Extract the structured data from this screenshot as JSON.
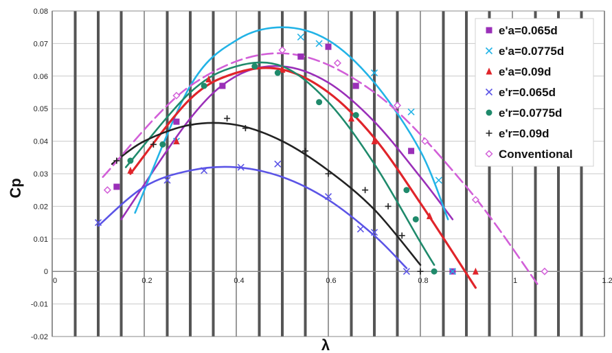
{
  "chart_data": {
    "type": "scatter",
    "xlabel": "λ",
    "ylabel": "Cp",
    "xlim": [
      0,
      1.2
    ],
    "ylim": [
      -0.02,
      0.08
    ],
    "xticks": [
      0,
      0.2,
      0.4,
      0.6,
      0.8,
      1,
      1.2
    ],
    "xtick_labels": [
      "0",
      "0.2",
      "0.4",
      "0.6",
      "0.8",
      "1",
      "1.2"
    ],
    "yticks": [
      -0.02,
      -0.01,
      0,
      0.01,
      0.02,
      0.03,
      0.04,
      0.05,
      0.06,
      0.07,
      0.08
    ],
    "ytick_labels": [
      "-0.02",
      "-0.01",
      "0",
      "0.01",
      "0.02",
      "0.03",
      "0.04",
      "0.05",
      "0.06",
      "0.07",
      "0.08"
    ],
    "grid": "vertical",
    "legend_position": "top-right",
    "series": [
      {
        "name": "e'a=0.065d",
        "color": "#9a2fb8",
        "marker": "square",
        "points": [
          [
            0.14,
            0.026
          ],
          [
            0.27,
            0.046
          ],
          [
            0.37,
            0.057
          ],
          [
            0.54,
            0.066
          ],
          [
            0.6,
            0.069
          ],
          [
            0.66,
            0.057
          ],
          [
            0.78,
            0.037
          ],
          [
            0.87,
            0.0
          ]
        ],
        "trend": [
          [
            0.15,
            0.016
          ],
          [
            0.3,
            0.047
          ],
          [
            0.4,
            0.06
          ],
          [
            0.5,
            0.063
          ],
          [
            0.6,
            0.058
          ],
          [
            0.7,
            0.046
          ],
          [
            0.8,
            0.029
          ],
          [
            0.87,
            0.016
          ]
        ]
      },
      {
        "name": "e'a=0.0775d",
        "color": "#22b3e6",
        "marker": "x",
        "points": [
          [
            0.27,
            0.04
          ],
          [
            0.54,
            0.072
          ],
          [
            0.58,
            0.07
          ],
          [
            0.7,
            0.061
          ],
          [
            0.78,
            0.049
          ],
          [
            0.84,
            0.028
          ],
          [
            0.87,
            0.0
          ]
        ],
        "trend": [
          [
            0.18,
            0.018
          ],
          [
            0.3,
            0.057
          ],
          [
            0.4,
            0.071
          ],
          [
            0.5,
            0.075
          ],
          [
            0.6,
            0.071
          ],
          [
            0.7,
            0.058
          ],
          [
            0.8,
            0.037
          ],
          [
            0.86,
            0.016
          ]
        ]
      },
      {
        "name": "e'a=0.09d",
        "color": "#e0242a",
        "marker": "triangle",
        "points": [
          [
            0.17,
            0.031
          ],
          [
            0.27,
            0.04
          ],
          [
            0.34,
            0.059
          ],
          [
            0.5,
            0.062
          ],
          [
            0.65,
            0.047
          ],
          [
            0.7,
            0.04
          ],
          [
            0.82,
            0.017
          ],
          [
            0.92,
            0.0
          ]
        ],
        "trend": [
          [
            0.17,
            0.03
          ],
          [
            0.3,
            0.053
          ],
          [
            0.4,
            0.061
          ],
          [
            0.5,
            0.062
          ],
          [
            0.6,
            0.055
          ],
          [
            0.7,
            0.041
          ],
          [
            0.8,
            0.021
          ],
          [
            0.92,
            -0.005
          ]
        ]
      },
      {
        "name": "e'r=0.065d",
        "color": "#5b54e6",
        "marker": "x",
        "points": [
          [
            0.1,
            0.015
          ],
          [
            0.25,
            0.028
          ],
          [
            0.33,
            0.031
          ],
          [
            0.41,
            0.032
          ],
          [
            0.49,
            0.033
          ],
          [
            0.6,
            0.023
          ],
          [
            0.67,
            0.013
          ],
          [
            0.7,
            0.012
          ],
          [
            0.77,
            0.0
          ]
        ],
        "trend": [
          [
            0.1,
            0.014
          ],
          [
            0.2,
            0.026
          ],
          [
            0.3,
            0.031
          ],
          [
            0.4,
            0.032
          ],
          [
            0.5,
            0.029
          ],
          [
            0.6,
            0.022
          ],
          [
            0.7,
            0.011
          ],
          [
            0.77,
            0.001
          ]
        ]
      },
      {
        "name": "e'r=0.0775d",
        "color": "#1f8a6b",
        "marker": "circle",
        "points": [
          [
            0.17,
            0.034
          ],
          [
            0.24,
            0.039
          ],
          [
            0.33,
            0.057
          ],
          [
            0.44,
            0.063
          ],
          [
            0.49,
            0.061
          ],
          [
            0.58,
            0.052
          ],
          [
            0.66,
            0.048
          ],
          [
            0.77,
            0.025
          ],
          [
            0.79,
            0.016
          ],
          [
            0.83,
            0.0
          ]
        ],
        "trend": [
          [
            0.16,
            0.032
          ],
          [
            0.3,
            0.055
          ],
          [
            0.4,
            0.063
          ],
          [
            0.5,
            0.063
          ],
          [
            0.6,
            0.052
          ],
          [
            0.7,
            0.033
          ],
          [
            0.8,
            0.009
          ],
          [
            0.83,
            0.002
          ]
        ]
      },
      {
        "name": "e'r=0.09d",
        "color": "#222222",
        "marker": "plus",
        "points": [
          [
            0.14,
            0.034
          ],
          [
            0.22,
            0.039
          ],
          [
            0.3,
            0.045
          ],
          [
            0.38,
            0.047
          ],
          [
            0.42,
            0.044
          ],
          [
            0.55,
            0.037
          ],
          [
            0.6,
            0.03
          ],
          [
            0.68,
            0.025
          ],
          [
            0.73,
            0.02
          ],
          [
            0.76,
            0.011
          ],
          [
            0.8,
            0.0
          ]
        ],
        "trend": [
          [
            0.13,
            0.033
          ],
          [
            0.2,
            0.04
          ],
          [
            0.3,
            0.045
          ],
          [
            0.4,
            0.045
          ],
          [
            0.5,
            0.04
          ],
          [
            0.6,
            0.031
          ],
          [
            0.7,
            0.019
          ],
          [
            0.8,
            0.002
          ]
        ]
      },
      {
        "name": "Conventional",
        "color": "#d25fd8",
        "marker": "diamond",
        "points": [
          [
            0.12,
            0.025
          ],
          [
            0.27,
            0.054
          ],
          [
            0.5,
            0.068
          ],
          [
            0.62,
            0.064
          ],
          [
            0.75,
            0.051
          ],
          [
            0.81,
            0.04
          ],
          [
            0.92,
            0.022
          ],
          [
            1.07,
            0.0
          ]
        ],
        "trend": [
          [
            0.11,
            0.029
          ],
          [
            0.3,
            0.057
          ],
          [
            0.5,
            0.067
          ],
          [
            0.7,
            0.055
          ],
          [
            0.9,
            0.026
          ],
          [
            1.06,
            -0.005
          ]
        ]
      }
    ]
  }
}
